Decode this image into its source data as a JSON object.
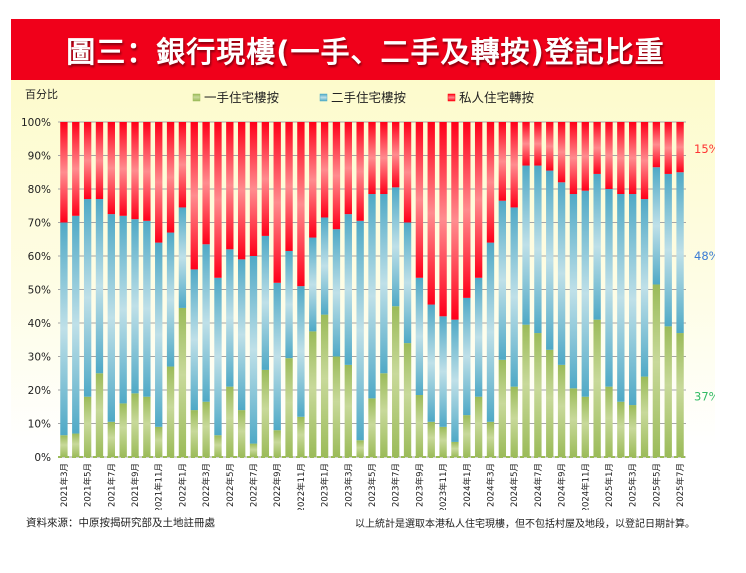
{
  "title": "圖三：銀行現樓(一手、二手及轉按)登記比重",
  "footer": {
    "source": "資料來源：中原按揭研究部及土地註冊處",
    "note": "以上統計是選取本港私人住宅現樓，但不包括村屋及地段，以登記日期計算。"
  },
  "chart_data": {
    "type": "bar",
    "stacked": true,
    "title": "",
    "ylabel": "百分比",
    "ylim": [
      0,
      100
    ],
    "y_ticks": [
      "0%",
      "10%",
      "20%",
      "30%",
      "40%",
      "50%",
      "60%",
      "70%",
      "80%",
      "90%",
      "100%"
    ],
    "grid": true,
    "legend_position": "top",
    "x_tick_labels": [
      "2021年3月",
      "2021年5月",
      "2021年7月",
      "2021年9月",
      "2021年11月",
      "2022年1月",
      "2022年3月",
      "2022年5月",
      "2022年7月",
      "2022年9月",
      "2022年11月",
      "2023年1月",
      "2023年3月",
      "2023年5月",
      "2023年7月",
      "2023年9月",
      "2023年11月",
      "2024年1月",
      "2024年3月",
      "2024年5月",
      "2024年7月",
      "2024年9月",
      "2024年11月",
      "2025年1月",
      "2025年3月",
      "2025年5月",
      "2025年7月"
    ],
    "x_start": "2021年3月",
    "x_end": "2025年7月",
    "series": [
      {
        "name": "一手住宅樓按",
        "color": "#9bbb59",
        "values": [
          6.5,
          7,
          18,
          25,
          10.5,
          16,
          19,
          18,
          9,
          27,
          44.5,
          14,
          16.5,
          6.5,
          21,
          14,
          4,
          26,
          8,
          29.5,
          12,
          37.5,
          42.5,
          30,
          27.5,
          5,
          17.5,
          25,
          45,
          34,
          18.5,
          10.5,
          9,
          4.5,
          12.5,
          18,
          10.5,
          29,
          21,
          39.5,
          37,
          32,
          27.5,
          20.5,
          18,
          41,
          21,
          16.5,
          15.5,
          24,
          51.5,
          39,
          37
        ]
      },
      {
        "name": "二手住宅樓按",
        "color": "#4bacc6",
        "values": [
          63.5,
          65,
          59,
          52,
          62,
          56,
          52,
          52.5,
          55,
          40,
          30,
          42,
          47,
          47,
          41,
          45,
          56,
          40,
          44,
          32,
          39,
          28,
          29,
          38,
          45,
          65.5,
          61,
          53.5,
          35.5,
          36,
          35,
          35,
          33,
          36.5,
          35,
          35.5,
          53.5,
          47.5,
          53.5,
          47.5,
          50,
          53.5,
          54.5,
          58,
          61.5,
          43.5,
          59,
          62,
          63,
          53,
          35,
          45.5,
          48
        ]
      },
      {
        "name": "私人住宅轉按",
        "color": "#ff0000",
        "values": [
          30,
          28,
          23,
          23,
          27.5,
          28,
          29,
          29.5,
          36,
          33,
          25.5,
          44,
          36.5,
          46.5,
          38,
          41,
          40,
          34,
          48,
          38.5,
          49,
          34.5,
          28.5,
          32,
          27.5,
          29.5,
          21.5,
          21.5,
          19.5,
          30,
          46.5,
          54.5,
          58,
          59,
          52.5,
          46.5,
          36,
          23.5,
          25.5,
          13,
          13,
          14.5,
          18,
          21.5,
          20.5,
          15.5,
          20,
          21.5,
          21.5,
          23,
          13.5,
          15.5,
          15
        ]
      }
    ],
    "annotations": [
      {
        "text": "15%",
        "series": "私人住宅轉按",
        "color": "#ff3333"
      },
      {
        "text": "48%",
        "series": "二手住宅樓按",
        "color": "#3a7bd5"
      },
      {
        "text": "37%",
        "series": "一手住宅樓按",
        "color": "#33bb66"
      }
    ]
  }
}
